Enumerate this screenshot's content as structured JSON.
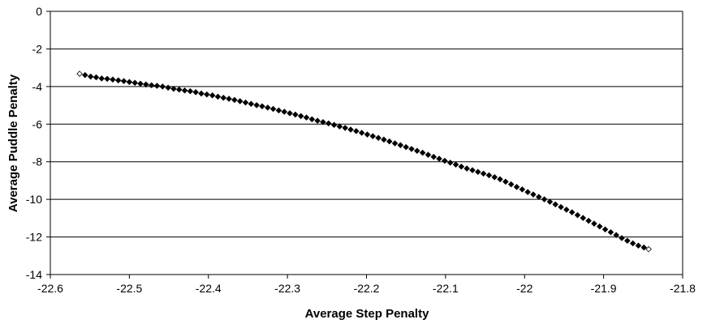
{
  "chart_data": {
    "type": "scatter",
    "title": "",
    "xlabel": "Average Step Penalty",
    "ylabel": "Average Puddle Penalty",
    "xlim": [
      -22.6,
      -21.8
    ],
    "ylim": [
      -14,
      0
    ],
    "xticks": [
      -22.6,
      -22.5,
      -22.4,
      -22.3,
      -22.2,
      -22.1,
      -22.0,
      -21.9,
      -21.8
    ],
    "xtick_labels": [
      "-22.6",
      "-22.5",
      "-22.4",
      "-22.3",
      "-22.2",
      "-22.1",
      "-22",
      "-21.9",
      "-21.8"
    ],
    "yticks": [
      0,
      -2,
      -4,
      -6,
      -8,
      -10,
      -12,
      -14
    ],
    "ytick_labels": [
      "0",
      "-2",
      "-4",
      "-6",
      "-8",
      "-10",
      "-12",
      "-14"
    ],
    "grid": "horizontal",
    "legend": "none",
    "marker_color": "#000000",
    "series": [
      {
        "x": [
          -22.563,
          -22.556,
          -22.549,
          -22.542,
          -22.535,
          -22.528,
          -22.521,
          -22.514,
          -22.507,
          -22.5,
          -22.493,
          -22.486,
          -22.479,
          -22.472,
          -22.465,
          -22.458,
          -22.451,
          -22.444,
          -22.437,
          -22.43,
          -22.423,
          -22.416,
          -22.409,
          -22.402,
          -22.395,
          -22.388,
          -22.381,
          -22.374,
          -22.367,
          -22.36,
          -22.353,
          -22.346,
          -22.339,
          -22.332,
          -22.325,
          -22.318,
          -22.311,
          -22.304,
          -22.297,
          -22.29,
          -22.283,
          -22.276,
          -22.269,
          -22.262,
          -22.255,
          -22.248,
          -22.241,
          -22.234,
          -22.227,
          -22.22,
          -22.213,
          -22.206,
          -22.199,
          -22.192,
          -22.185,
          -22.178,
          -22.171,
          -22.164,
          -22.157,
          -22.15,
          -22.143,
          -22.136,
          -22.129,
          -22.122,
          -22.115,
          -22.108,
          -22.101,
          -22.094,
          -22.087,
          -22.08,
          -22.073,
          -22.066,
          -22.059,
          -22.052,
          -22.045,
          -22.038,
          -22.031,
          -22.024,
          -22.017,
          -22.01,
          -22.003,
          -21.996,
          -21.989,
          -21.982,
          -21.975,
          -21.968,
          -21.961,
          -21.954,
          -21.947,
          -21.94,
          -21.933,
          -21.926,
          -21.919,
          -21.912,
          -21.905,
          -21.898,
          -21.891,
          -21.884,
          -21.877,
          -21.87,
          -21.863,
          -21.856,
          -21.849,
          -21.843
        ],
        "y": [
          -3.32,
          -3.39,
          -3.47,
          -3.51,
          -3.57,
          -3.59,
          -3.63,
          -3.67,
          -3.71,
          -3.76,
          -3.8,
          -3.85,
          -3.89,
          -3.93,
          -3.96,
          -4.0,
          -4.06,
          -4.12,
          -4.16,
          -4.21,
          -4.25,
          -4.3,
          -4.37,
          -4.42,
          -4.47,
          -4.54,
          -4.6,
          -4.65,
          -4.71,
          -4.78,
          -4.85,
          -4.92,
          -4.99,
          -5.05,
          -5.12,
          -5.19,
          -5.27,
          -5.34,
          -5.42,
          -5.49,
          -5.57,
          -5.65,
          -5.74,
          -5.82,
          -5.89,
          -5.96,
          -6.04,
          -6.12,
          -6.2,
          -6.29,
          -6.37,
          -6.46,
          -6.55,
          -6.64,
          -6.73,
          -6.82,
          -6.92,
          -7.02,
          -7.12,
          -7.22,
          -7.32,
          -7.42,
          -7.52,
          -7.63,
          -7.74,
          -7.84,
          -7.95,
          -8.05,
          -8.15,
          -8.26,
          -8.36,
          -8.45,
          -8.54,
          -8.63,
          -8.72,
          -8.82,
          -8.93,
          -9.06,
          -9.2,
          -9.34,
          -9.47,
          -9.61,
          -9.74,
          -9.87,
          -10.0,
          -10.13,
          -10.27,
          -10.41,
          -10.55,
          -10.69,
          -10.84,
          -10.99,
          -11.14,
          -11.29,
          -11.44,
          -11.6,
          -11.75,
          -11.9,
          -12.06,
          -12.2,
          -12.34,
          -12.46,
          -12.56,
          -12.65
        ]
      }
    ]
  }
}
